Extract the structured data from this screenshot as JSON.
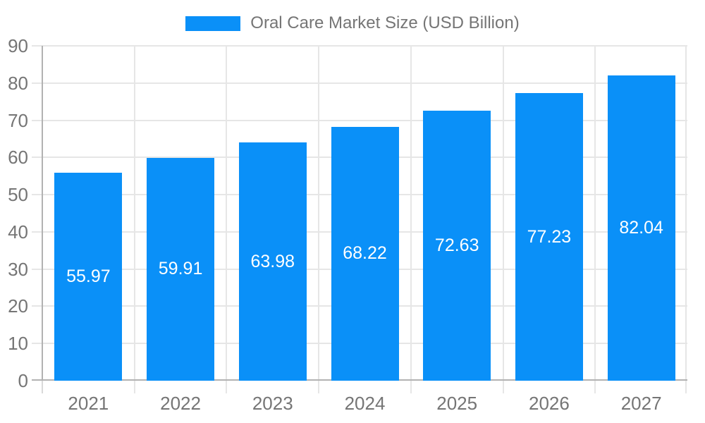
{
  "legend": {
    "label": "Oral Care Market Size (USD Billion)"
  },
  "chart_data": {
    "type": "bar",
    "title": "Oral Care Market Size (USD Billion)",
    "categories": [
      "2021",
      "2022",
      "2023",
      "2024",
      "2025",
      "2026",
      "2027"
    ],
    "values": [
      55.97,
      59.91,
      63.98,
      68.22,
      72.63,
      77.23,
      82.04
    ],
    "value_labels": [
      "55.97",
      "59.91",
      "63.98",
      "68.22",
      "72.63",
      "77.23",
      "82.04"
    ],
    "yticks": [
      0,
      10,
      20,
      30,
      40,
      50,
      60,
      70,
      80,
      90
    ],
    "ylim": [
      0,
      90
    ],
    "xlabel": "",
    "ylabel": "",
    "grid": true,
    "legend_position": "top",
    "colors": {
      "bar": "#0a90f8",
      "value_label": "#ffffff",
      "axis_text": "#757575",
      "gridline": "#e6e6e6",
      "axis_line": "#b2b2b2",
      "background": "#ffffff"
    }
  }
}
